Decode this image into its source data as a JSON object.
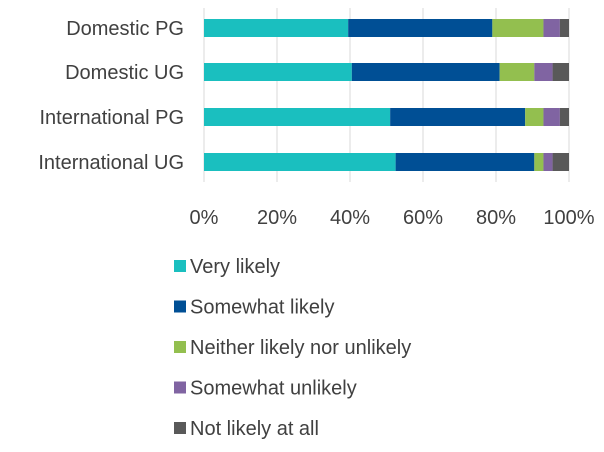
{
  "chart_data": {
    "type": "bar",
    "orientation": "horizontal",
    "stacked": "percent",
    "categories": [
      "Domestic PG",
      "Domestic UG",
      "International PG",
      "International UG"
    ],
    "series": [
      {
        "name": "Very likely",
        "color": "#1ABFBF",
        "values": [
          39.5,
          40.5,
          51,
          52.5
        ]
      },
      {
        "name": "Somewhat likely",
        "color": "#004F95",
        "values": [
          39.5,
          40.5,
          37,
          38
        ]
      },
      {
        "name": "Neither likely nor unlikely",
        "color": "#93BF4F",
        "values": [
          14,
          9.5,
          5,
          2.5
        ]
      },
      {
        "name": "Somewhat unlikely",
        "color": "#8064A2",
        "values": [
          4.5,
          5,
          4.5,
          2.5
        ]
      },
      {
        "name": "Not likely at all",
        "color": "#595959",
        "values": [
          2.5,
          4.5,
          2.5,
          4.5
        ]
      }
    ],
    "x_ticks": [
      "0%",
      "20%",
      "40%",
      "60%",
      "80%",
      "100%"
    ],
    "xlim": [
      0,
      100
    ],
    "grid": true,
    "legend_position": "bottom"
  }
}
